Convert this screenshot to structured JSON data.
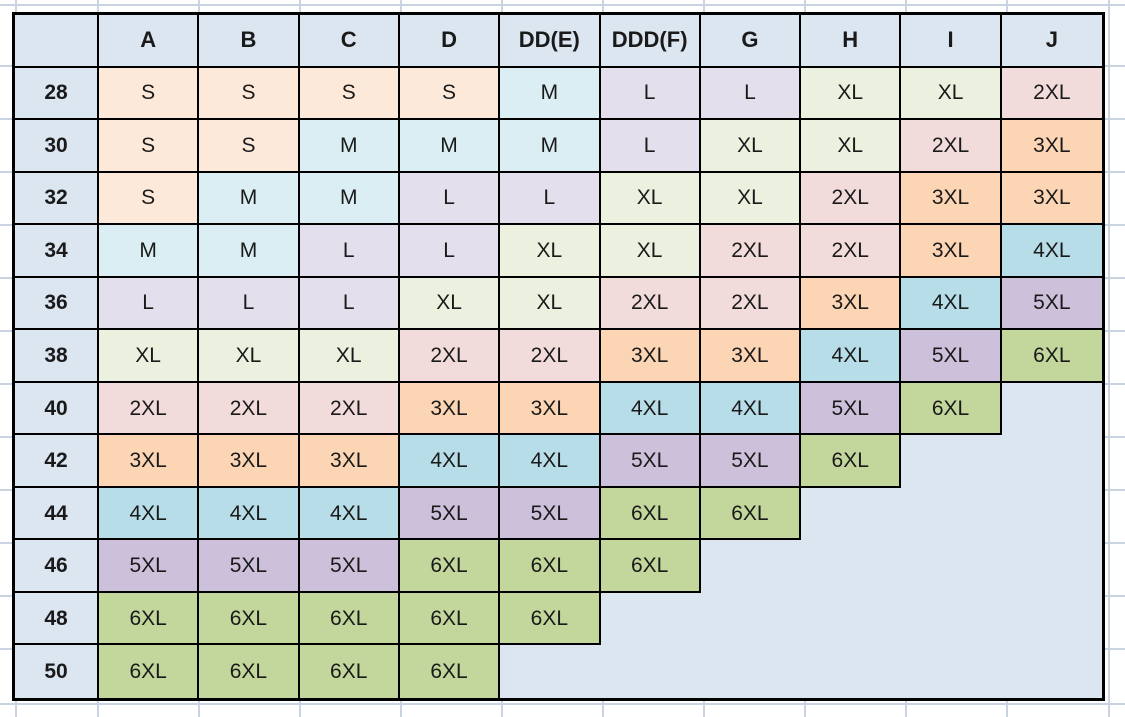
{
  "chart_data": {
    "type": "table",
    "corner_label": "",
    "columns": [
      "A",
      "B",
      "C",
      "D",
      "DD(E)",
      "DDD(F)",
      "G",
      "H",
      "I",
      "J"
    ],
    "row_labels": [
      "28",
      "30",
      "32",
      "34",
      "36",
      "38",
      "40",
      "42",
      "44",
      "46",
      "48",
      "50"
    ],
    "cells": [
      [
        "S",
        "S",
        "S",
        "S",
        "M",
        "L",
        "L",
        "XL",
        "XL",
        "2XL"
      ],
      [
        "S",
        "S",
        "M",
        "M",
        "M",
        "L",
        "XL",
        "XL",
        "2XL",
        "3XL"
      ],
      [
        "S",
        "M",
        "M",
        "L",
        "L",
        "XL",
        "XL",
        "2XL",
        "3XL",
        "3XL"
      ],
      [
        "M",
        "M",
        "L",
        "L",
        "XL",
        "XL",
        "2XL",
        "2XL",
        "3XL",
        "4XL"
      ],
      [
        "L",
        "L",
        "L",
        "XL",
        "XL",
        "2XL",
        "2XL",
        "3XL",
        "4XL",
        "5XL"
      ],
      [
        "XL",
        "XL",
        "XL",
        "2XL",
        "2XL",
        "3XL",
        "3XL",
        "4XL",
        "5XL",
        "6XL"
      ],
      [
        "2XL",
        "2XL",
        "2XL",
        "3XL",
        "3XL",
        "4XL",
        "4XL",
        "5XL",
        "6XL",
        ""
      ],
      [
        "3XL",
        "3XL",
        "3XL",
        "4XL",
        "4XL",
        "5XL",
        "5XL",
        "6XL",
        "",
        ""
      ],
      [
        "4XL",
        "4XL",
        "4XL",
        "5XL",
        "5XL",
        "6XL",
        "6XL",
        "",
        "",
        ""
      ],
      [
        "5XL",
        "5XL",
        "5XL",
        "6XL",
        "6XL",
        "6XL",
        "",
        "",
        "",
        ""
      ],
      [
        "6XL",
        "6XL",
        "6XL",
        "6XL",
        "6XL",
        "",
        "",
        "",
        "",
        ""
      ],
      [
        "6XL",
        "6XL",
        "6XL",
        "6XL",
        "",
        "",
        "",
        "",
        "",
        ""
      ]
    ],
    "size_fill_colors": {
      "S": "#FDE9D9",
      "M": "#DAEEF3",
      "L": "#E4DFEC",
      "XL": "#EBF1DE",
      "2XL": "#F2DCDB",
      "3XL": "#FCD5B4",
      "4XL": "#B7DEE8",
      "5XL": "#CCC0DA",
      "6XL": "#C3D69B"
    },
    "header_bg": "#DCE6F1",
    "row_label_bg": "#DCE6F1",
    "empty_cell_bg": "#DCE6F1",
    "border_color": "#000000",
    "text_color": "#1A1A1A",
    "page_bg": "#FFFFFF",
    "gridline_color": "#C9D3E2",
    "grid_on": true,
    "legend_position": "none"
  }
}
